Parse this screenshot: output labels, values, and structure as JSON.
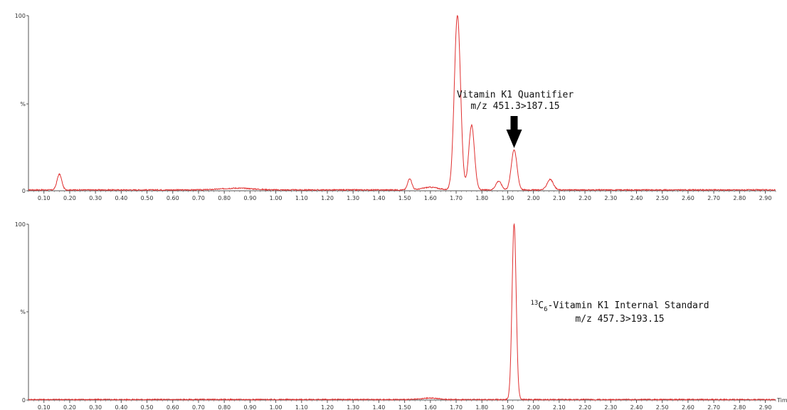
{
  "chart_data": [
    {
      "type": "line",
      "xlabel": "",
      "x_ticks": [
        "0.10",
        "0.20",
        "0.30",
        "0.40",
        "0.50",
        "0.60",
        "0.70",
        "0.80",
        "0.90",
        "1.00",
        "1.10",
        "1.20",
        "1.30",
        "1.40",
        "1.50",
        "1.60",
        "1.70",
        "1.80",
        "1.90",
        "2.00",
        "2.10",
        "2.20",
        "2.30",
        "2.40",
        "2.50",
        "2.60",
        "2.70",
        "2.80",
        "2.90"
      ],
      "y_ticks": [
        "0",
        "%",
        "100"
      ],
      "xlim": [
        0.04,
        2.94
      ],
      "ylim": [
        0,
        100
      ],
      "series_color": "#e03030",
      "baseline": 0.5,
      "peaks": [
        {
          "x": 0.16,
          "y": 9,
          "w": 0.009
        },
        {
          "x": 0.85,
          "y": 1.0,
          "w": 0.06
        },
        {
          "x": 1.52,
          "y": 6.5,
          "w": 0.008
        },
        {
          "x": 1.6,
          "y": 1.5,
          "w": 0.03
        },
        {
          "x": 1.705,
          "y": 100,
          "w": 0.012
        },
        {
          "x": 1.76,
          "y": 37,
          "w": 0.011
        },
        {
          "x": 1.865,
          "y": 5,
          "w": 0.011
        },
        {
          "x": 1.925,
          "y": 23,
          "w": 0.011
        },
        {
          "x": 2.065,
          "y": 6,
          "w": 0.012
        }
      ],
      "annotation": {
        "line1": "Vitamin K1 Quantifier",
        "line2": "m/z 451.3>187.15",
        "arrow_at_x": 1.925,
        "arrow_color": "#000000"
      }
    },
    {
      "type": "line",
      "xlabel": "Tim",
      "x_ticks": [
        "0.10",
        "0.20",
        "0.30",
        "0.40",
        "0.50",
        "0.60",
        "0.70",
        "0.80",
        "0.90",
        "1.00",
        "1.10",
        "1.20",
        "1.30",
        "1.40",
        "1.50",
        "1.60",
        "1.70",
        "1.80",
        "1.90",
        "2.00",
        "2.10",
        "2.20",
        "2.30",
        "2.40",
        "2.50",
        "2.60",
        "2.70",
        "2.80",
        "2.90"
      ],
      "y_ticks": [
        "0",
        "%",
        "100"
      ],
      "xlim": [
        0.04,
        2.94
      ],
      "ylim": [
        0,
        100
      ],
      "series_color": "#e03030",
      "baseline": 0.3,
      "peaks": [
        {
          "x": 1.6,
          "y": 0.8,
          "w": 0.03
        },
        {
          "x": 1.925,
          "y": 100,
          "w": 0.008
        }
      ],
      "annotation": {
        "sup": "13",
        "base": "C",
        "sub": "6",
        "rest": "-Vitamin K1 Internal Standard",
        "line2": "m/z 457.3>193.15"
      }
    }
  ]
}
